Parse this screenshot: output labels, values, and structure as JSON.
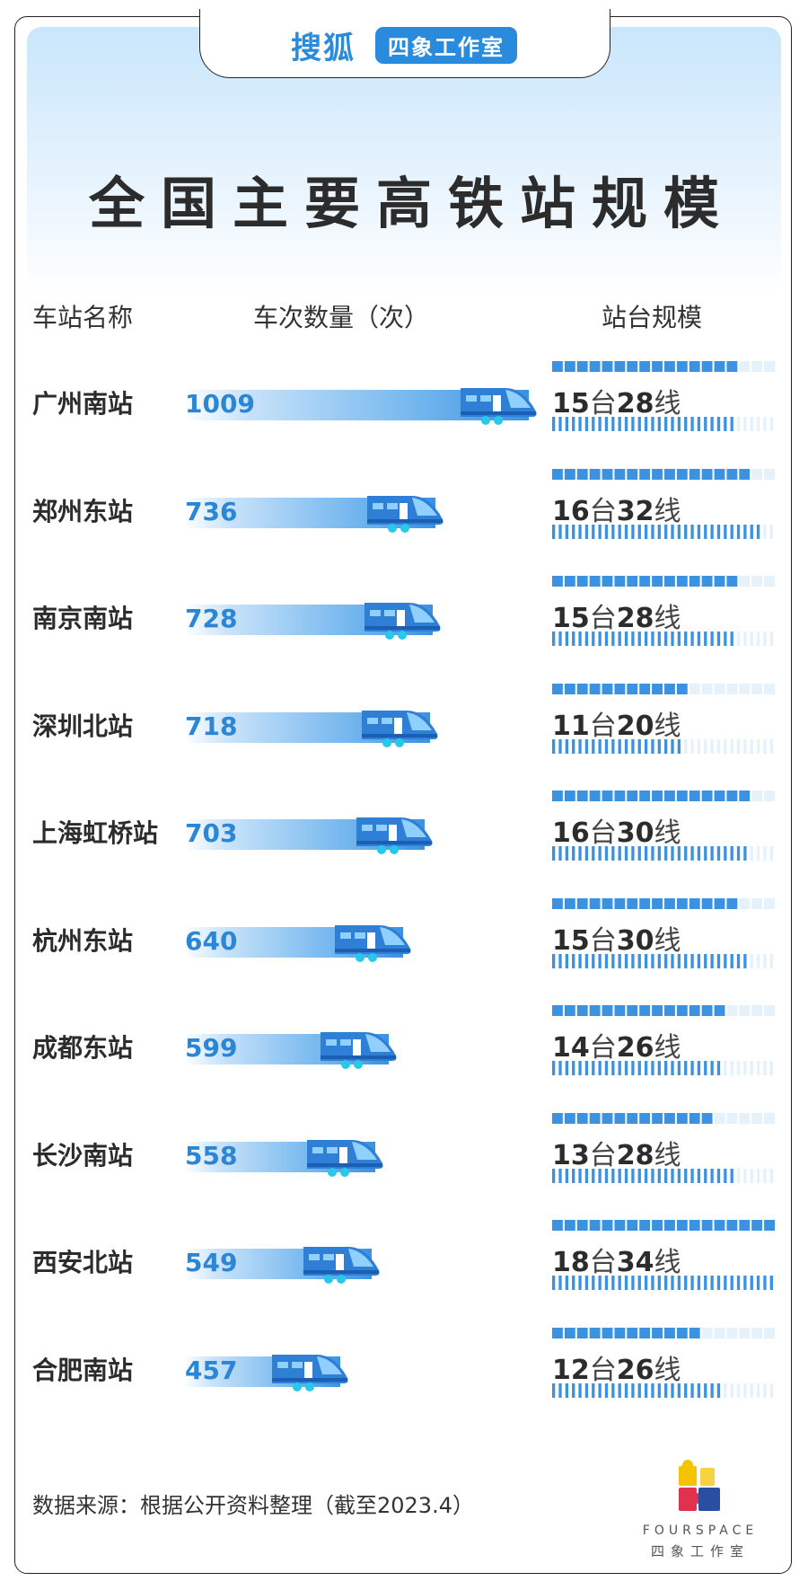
{
  "brand": {
    "name": "搜狐",
    "studio": "四象工作室"
  },
  "title": "全国主要高铁站规模",
  "headers": {
    "station": "车站名称",
    "trains": "车次数量（次）",
    "platform": "站台规模"
  },
  "source": "数据来源：根据公开资料整理（截至2023.4）",
  "logo": {
    "en": "FOURSPACE",
    "cn": "四象工作室"
  },
  "colors": {
    "accent": "#2b86d6",
    "text": "#2c2c2c",
    "bar_light": "#d8ebfb"
  },
  "chart_data": {
    "type": "bar",
    "orientation": "horizontal",
    "title": "全国主要高铁站规模",
    "categories": [
      "广州南站",
      "郑州东站",
      "南京南站",
      "深圳北站",
      "上海虹桥站",
      "杭州东站",
      "成都东站",
      "长沙南站",
      "西安北站",
      "合肥南站"
    ],
    "series": [
      {
        "name": "车次数量（次）",
        "values": [
          1009,
          736,
          728,
          718,
          703,
          640,
          599,
          558,
          549,
          457
        ]
      }
    ],
    "platforms": [
      15,
      16,
      15,
      11,
      16,
      15,
      14,
      13,
      18,
      12
    ],
    "tracks": [
      28,
      32,
      28,
      20,
      30,
      30,
      26,
      28,
      34,
      26
    ],
    "platform_labels": [
      "15台28线",
      "16台32线",
      "15台28线",
      "11台20线",
      "16台30线",
      "15台30线",
      "14台26线",
      "13台28线",
      "18台34线",
      "12台26线"
    ],
    "platform_max": 18,
    "track_max": 34,
    "grid": false,
    "legend": "none"
  }
}
